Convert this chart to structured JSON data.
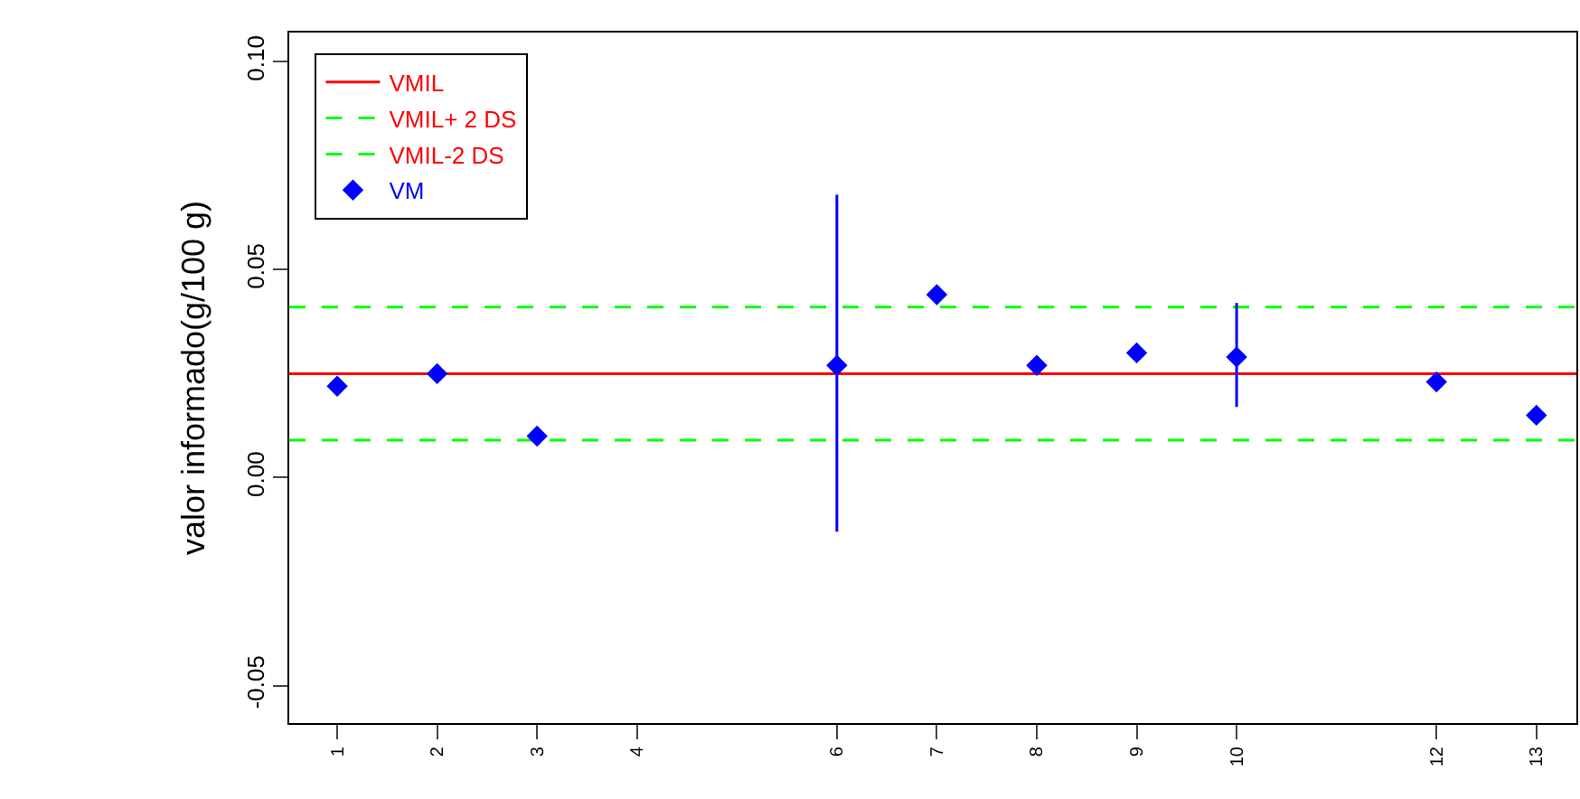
{
  "chart_data": {
    "type": "scatter",
    "ylabel": "valor informado(g/100 g)",
    "x": [
      1,
      2,
      3,
      6,
      7,
      8,
      9,
      10,
      12,
      13
    ],
    "series": [
      {
        "name": "VM",
        "color": "#0000ff",
        "values": [
          0.022,
          0.025,
          0.01,
          0.027,
          0.044,
          0.027,
          0.03,
          0.029,
          0.023,
          0.015
        ],
        "errors": [
          null,
          null,
          null,
          [
            -0.013,
            0.068
          ],
          null,
          null,
          null,
          [
            0.017,
            0.042
          ],
          null,
          null
        ]
      }
    ],
    "marker": "diamond",
    "ref_lines": [
      {
        "axis": "y",
        "value": 0.025,
        "label": "VMIL",
        "color": "#ff0000",
        "line_style": "solid"
      },
      {
        "axis": "y",
        "value": 0.041,
        "label": "VMIL+ 2 DS",
        "color": "#00ff00",
        "line_style": "dashed"
      },
      {
        "axis": "y",
        "value": 0.009,
        "label": "VMIL-2 DS",
        "color": "#00ff00",
        "line_style": "dashed"
      }
    ],
    "xlim": [
      0.52,
      13.4
    ],
    "xticks": [
      1,
      2,
      3,
      4,
      6,
      7,
      8,
      9,
      10,
      12,
      13
    ],
    "ylim": [
      -0.059,
      0.107
    ],
    "yticks": [
      {
        "value": -0.05,
        "label": "-0.05"
      },
      {
        "value": 0,
        "label": "0.00"
      },
      {
        "value": 0.05,
        "label": "0.05"
      },
      {
        "value": 0.1,
        "label": "0.10"
      }
    ],
    "legend": "top left"
  }
}
